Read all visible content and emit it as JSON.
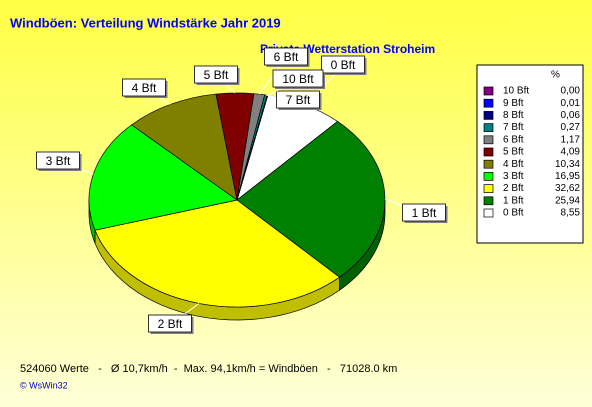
{
  "chart_data": {
    "type": "pie",
    "title": "Windböen: Verteilung Windstärke  Jahr 2019",
    "subtitle": "Private Wetterstation Stroheim",
    "legend_header": "%",
    "categories": [
      "10 Bft",
      "9 Bft",
      "8 Bft",
      "7 Bft",
      "6 Bft",
      "5 Bft",
      "4 Bft",
      "3 Bft",
      "2 Bft",
      "1 Bft",
      "0 Bft"
    ],
    "values": [
      0.0,
      0.01,
      0.06,
      0.27,
      1.17,
      4.09,
      10.34,
      16.95,
      32.62,
      25.94,
      8.55
    ],
    "value_labels": [
      "0,00",
      "0,01",
      "0,06",
      "0,27",
      "1,17",
      "4,09",
      "10,34",
      "16,95",
      "32,62",
      "25,94",
      "8,55"
    ],
    "colors": [
      "#800080",
      "#0000ff",
      "#000080",
      "#008080",
      "#808080",
      "#800000",
      "#808000",
      "#00ff00",
      "#ffff00",
      "#008000",
      "#ffffff"
    ],
    "footer": "524060 Werte   -   Ø 10,7km/h  -  Max. 94,1km/h = Windböen   -   71028.0 km",
    "credit": "© WsWin32"
  }
}
